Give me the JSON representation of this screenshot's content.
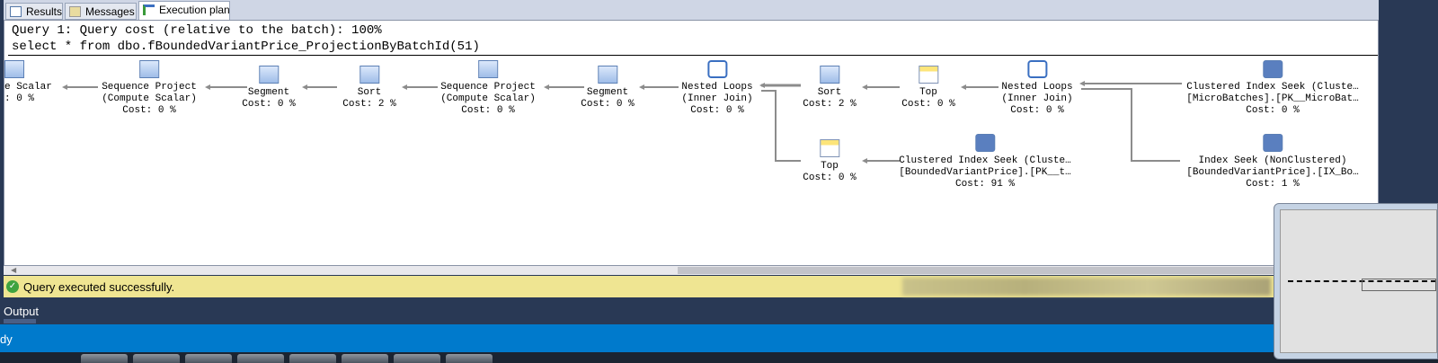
{
  "tabs": [
    {
      "label": "Results"
    },
    {
      "label": "Messages"
    },
    {
      "label": "Execution plan"
    }
  ],
  "plan": {
    "header_cost": "Query 1: Query cost (relative to the batch): 100%",
    "header_sql": "select * from dbo.fBoundedVariantPrice_ProjectionByBatchId(51)",
    "nodes": [
      {
        "id": "compute-scalar",
        "icon": "compute-scalar-icon",
        "lines": [
          "e Scalar",
          ": 0 %"
        ]
      },
      {
        "id": "sequence-project-1",
        "icon": "sequence-project-icon",
        "lines": [
          "Sequence Project",
          "(Compute Scalar)",
          "Cost: 0 %"
        ]
      },
      {
        "id": "segment-1",
        "icon": "segment-icon",
        "lines": [
          "Segment",
          "Cost: 0 %"
        ]
      },
      {
        "id": "sort-1",
        "icon": "sort-icon",
        "lines": [
          "Sort",
          "Cost: 2 %"
        ]
      },
      {
        "id": "sequence-project-2",
        "icon": "sequence-project-icon",
        "lines": [
          "Sequence Project",
          "(Compute Scalar)",
          "Cost: 0 %"
        ]
      },
      {
        "id": "segment-2",
        "icon": "segment-icon",
        "lines": [
          "Segment",
          "Cost: 0 %"
        ]
      },
      {
        "id": "nested-loops-1",
        "icon": "nested-loops-icon",
        "lines": [
          "Nested Loops",
          "(Inner Join)",
          "Cost: 0 %"
        ]
      },
      {
        "id": "sort-2",
        "icon": "sort-icon",
        "lines": [
          "Sort",
          "Cost: 2 %"
        ]
      },
      {
        "id": "top-1",
        "icon": "top-icon",
        "lines": [
          "Top",
          "Cost: 0 %"
        ]
      },
      {
        "id": "nested-loops-2",
        "icon": "nested-loops-icon",
        "lines": [
          "Nested Loops",
          "(Inner Join)",
          "Cost: 0 %"
        ]
      },
      {
        "id": "clustered-index-seek-1",
        "icon": "clustered-index-seek-icon",
        "lines": [
          "Clustered Index Seek (Cluste…",
          "[MicroBatches].[PK__MicroBat…",
          "Cost: 0 %"
        ]
      },
      {
        "id": "top-2",
        "icon": "top-icon",
        "lines": [
          "Top",
          "Cost: 0 %"
        ]
      },
      {
        "id": "clustered-index-seek-2",
        "icon": "clustered-index-seek-icon",
        "lines": [
          "Clustered Index Seek (Cluste…",
          "[BoundedVariantPrice].[PK__t…",
          "Cost: 91 %"
        ]
      },
      {
        "id": "index-seek",
        "icon": "index-seek-icon",
        "lines": [
          "Index Seek (NonClustered)",
          "[BoundedVariantPrice].[IX_Bo…",
          "Cost: 1 %"
        ]
      }
    ]
  },
  "status": {
    "message": "Query executed successfully.",
    "icon": "success-check-icon",
    "color": "#efe592"
  },
  "output_label": "Output",
  "vs_status": "dy",
  "accent": "#007acc"
}
